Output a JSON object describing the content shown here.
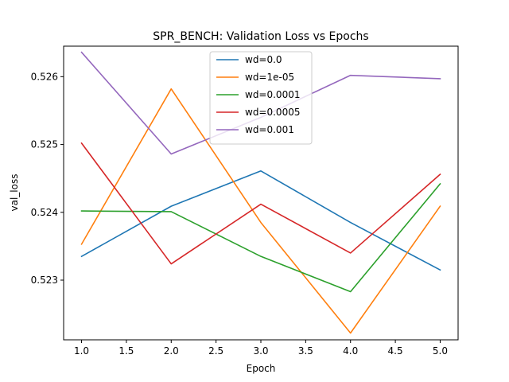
{
  "chart_data": {
    "type": "line",
    "title": "SPR_BENCH: Validation Loss vs Epochs",
    "xlabel": "Epoch",
    "ylabel": "val_loss",
    "x": [
      1,
      2,
      3,
      4,
      5
    ],
    "xlim": [
      0.8,
      5.2
    ],
    "ylim": [
      0.52212,
      0.52645
    ],
    "xticks": [
      1.0,
      1.5,
      2.0,
      2.5,
      3.0,
      3.5,
      4.0,
      4.5,
      5.0
    ],
    "xtick_labels": [
      "1.0",
      "1.5",
      "2.0",
      "2.5",
      "3.0",
      "3.5",
      "4.0",
      "4.5",
      "5.0"
    ],
    "yticks": [
      0.523,
      0.524,
      0.525,
      0.526
    ],
    "ytick_labels": [
      "0.523",
      "0.524",
      "0.525",
      "0.526"
    ],
    "grid": false,
    "legend_position": "upper center",
    "series": [
      {
        "name": "wd=0.0",
        "color": "#1f77b4",
        "values": [
          0.52335,
          0.52409,
          0.52461,
          0.52385,
          0.52315
        ]
      },
      {
        "name": "wd=1e-05",
        "color": "#ff7f0e",
        "values": [
          0.52353,
          0.52582,
          0.52385,
          0.52222,
          0.52409
        ]
      },
      {
        "name": "wd=0.0001",
        "color": "#2ca02c",
        "values": [
          0.52402,
          0.52401,
          0.52335,
          0.52283,
          0.52442
        ]
      },
      {
        "name": "wd=0.0005",
        "color": "#d62728",
        "values": [
          0.52502,
          0.52324,
          0.52412,
          0.5234,
          0.52456
        ]
      },
      {
        "name": "wd=0.001",
        "color": "#9467bd",
        "values": [
          0.52636,
          0.52486,
          0.5254,
          0.52602,
          0.52597
        ]
      }
    ]
  }
}
